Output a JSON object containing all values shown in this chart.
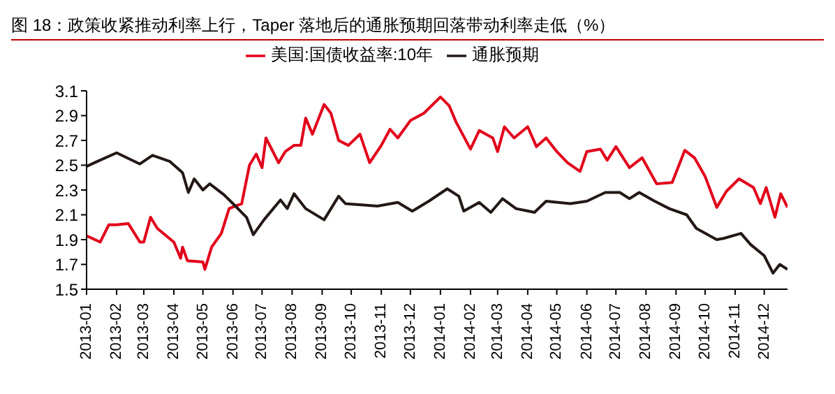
{
  "chart_data": {
    "type": "line",
    "title": "图 18：政策收紧推动利率上行，Taper 落地后的通胀预期回落带动利率走低（%）",
    "series": [
      {
        "name": "美国:国债收益率:10年",
        "color": "#e2001a",
        "x": [
          "2013-01-01",
          "2013-01-15",
          "2013-01-24",
          "2013-02-01",
          "2013-02-13",
          "2013-02-25",
          "2013-03-01",
          "2013-03-08",
          "2013-03-15",
          "2013-04-01",
          "2013-04-08",
          "2013-04-10",
          "2013-04-15",
          "2013-05-01",
          "2013-05-03",
          "2013-05-10",
          "2013-05-20",
          "2013-05-28",
          "2013-06-03",
          "2013-06-10",
          "2013-06-18",
          "2013-06-25",
          "2013-07-01",
          "2013-07-05",
          "2013-07-18",
          "2013-07-25",
          "2013-08-03",
          "2013-08-10",
          "2013-08-15",
          "2013-08-22",
          "2013-09-03",
          "2013-09-10",
          "2013-09-18",
          "2013-09-28",
          "2013-10-10",
          "2013-10-20",
          "2013-11-01",
          "2013-11-10",
          "2013-11-18",
          "2013-12-01",
          "2013-12-15",
          "2014-01-01",
          "2014-01-10",
          "2014-01-17",
          "2014-02-01",
          "2014-02-10",
          "2014-02-24",
          "2014-03-01",
          "2014-03-08",
          "2014-03-18",
          "2014-04-01",
          "2014-04-10",
          "2014-04-20",
          "2014-05-01",
          "2014-05-12",
          "2014-05-25",
          "2014-06-01",
          "2014-06-15",
          "2014-06-22",
          "2014-07-01",
          "2014-07-15",
          "2014-07-28",
          "2014-08-12",
          "2014-08-28",
          "2014-09-10",
          "2014-09-20",
          "2014-10-01",
          "2014-10-13",
          "2014-10-23",
          "2014-11-05",
          "2014-11-20",
          "2014-11-27",
          "2014-12-03",
          "2014-12-12",
          "2014-12-18",
          "2014-12-25"
        ],
        "values": [
          1.93,
          1.88,
          2.02,
          2.02,
          2.03,
          1.88,
          1.88,
          2.08,
          1.99,
          1.88,
          1.75,
          1.84,
          1.73,
          1.72,
          1.66,
          1.84,
          1.95,
          2.15,
          2.17,
          2.19,
          2.5,
          2.59,
          2.48,
          2.72,
          2.52,
          2.61,
          2.66,
          2.66,
          2.88,
          2.75,
          2.99,
          2.92,
          2.7,
          2.66,
          2.75,
          2.52,
          2.66,
          2.79,
          2.72,
          2.86,
          2.92,
          3.05,
          2.98,
          2.85,
          2.63,
          2.78,
          2.72,
          2.61,
          2.81,
          2.72,
          2.81,
          2.65,
          2.72,
          2.61,
          2.52,
          2.45,
          2.61,
          2.63,
          2.54,
          2.65,
          2.48,
          2.56,
          2.35,
          2.36,
          2.62,
          2.56,
          2.41,
          2.16,
          2.29,
          2.39,
          2.32,
          2.19,
          2.32,
          2.08,
          2.27,
          2.16
        ]
      },
      {
        "name": "通胀预期",
        "color": "#231815",
        "x": [
          "2013-01-01",
          "2013-01-12",
          "2013-02-01",
          "2013-02-25",
          "2013-03-10",
          "2013-03-28",
          "2013-04-10",
          "2013-04-16",
          "2013-04-22",
          "2013-05-01",
          "2013-05-08",
          "2013-05-23",
          "2013-06-01",
          "2013-06-15",
          "2013-06-22",
          "2013-07-03",
          "2013-07-20",
          "2013-07-27",
          "2013-08-03",
          "2013-08-15",
          "2013-09-03",
          "2013-09-18",
          "2013-09-25",
          "2013-10-28",
          "2013-11-18",
          "2013-12-03",
          "2013-12-20",
          "2014-01-08",
          "2014-01-20",
          "2014-01-25",
          "2014-02-10",
          "2014-02-22",
          "2014-03-06",
          "2014-03-20",
          "2014-04-08",
          "2014-04-20",
          "2014-05-15",
          "2014-06-01",
          "2014-06-20",
          "2014-07-05",
          "2014-07-15",
          "2014-07-25",
          "2014-08-10",
          "2014-08-25",
          "2014-09-12",
          "2014-09-22",
          "2014-10-13",
          "2014-10-20",
          "2014-11-07",
          "2014-11-17",
          "2014-12-01",
          "2014-12-10",
          "2014-12-17",
          "2014-12-25"
        ],
        "values": [
          2.49,
          2.53,
          2.6,
          2.51,
          2.58,
          2.53,
          2.44,
          2.28,
          2.39,
          2.3,
          2.35,
          2.26,
          2.19,
          2.08,
          1.94,
          2.06,
          2.22,
          2.15,
          2.27,
          2.15,
          2.06,
          2.25,
          2.19,
          2.17,
          2.2,
          2.13,
          2.21,
          2.31,
          2.25,
          2.13,
          2.2,
          2.12,
          2.23,
          2.15,
          2.12,
          2.21,
          2.19,
          2.21,
          2.28,
          2.28,
          2.23,
          2.28,
          2.21,
          2.15,
          2.1,
          1.99,
          1.9,
          1.91,
          1.95,
          1.86,
          1.77,
          1.63,
          1.7,
          1.66
        ]
      }
    ],
    "xlim": [
      "2013-01-01",
      "2014-12-25"
    ],
    "xticks": [
      "2013-01",
      "2013-02",
      "2013-03",
      "2013-04",
      "2013-05",
      "2013-06",
      "2013-07",
      "2013-08",
      "2013-09",
      "2013-10",
      "2013-11",
      "2013-12",
      "2014-01",
      "2014-02",
      "2014-03",
      "2014-04",
      "2014-05",
      "2014-06",
      "2014-07",
      "2014-08",
      "2014-09",
      "2014-10",
      "2014-11",
      "2014-12"
    ],
    "ylim": [
      1.5,
      3.1
    ],
    "yticks": [
      1.5,
      1.7,
      1.9,
      2.1,
      2.3,
      2.5,
      2.7,
      2.9,
      3.1
    ],
    "legend": "top",
    "grid": false,
    "marker": "none",
    "line_style": "solid"
  }
}
